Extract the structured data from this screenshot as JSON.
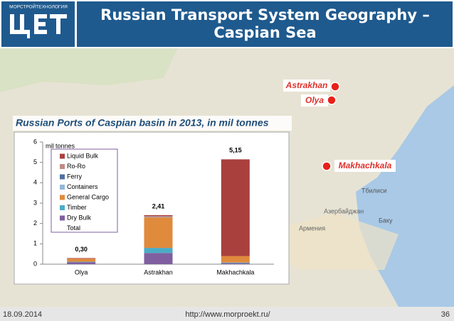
{
  "header": {
    "logo_text": "МОРСТРОЙТЕХНОЛОГИЯ",
    "title": "Russian Transport System Geography – Caspian Sea"
  },
  "map": {
    "markers": [
      "Astrakhan",
      "Olya",
      "Makhachkala"
    ],
    "labels": [
      "Тбилиси",
      "Баку",
      "Азербайджан",
      "Армения"
    ]
  },
  "chart_data": {
    "type": "bar",
    "stacked": true,
    "title": "Russian Ports of Caspian basin in 2013, in mil tonnes",
    "y_label": "mil tonnes",
    "categories": [
      "Olya",
      "Astrakhan",
      "Makhachkala"
    ],
    "ylim": [
      0,
      6
    ],
    "yticks": [
      0,
      1,
      2,
      3,
      4,
      5,
      6
    ],
    "series": [
      {
        "name": "Liquid Bulk",
        "color": "#a9403e",
        "values": [
          0.03,
          0.05,
          4.75
        ]
      },
      {
        "name": "Ro-Ro",
        "color": "#c08a86",
        "values": [
          0,
          0.04,
          0
        ]
      },
      {
        "name": "Ferry",
        "color": "#4f6fa0",
        "values": [
          0,
          0,
          0
        ]
      },
      {
        "name": "Containers",
        "color": "#94b6d8",
        "values": [
          0,
          0.02,
          0
        ]
      },
      {
        "name": "General Cargo",
        "color": "#e08a3c",
        "values": [
          0.15,
          1.5,
          0.32
        ]
      },
      {
        "name": "Timber",
        "color": "#4bacc6",
        "values": [
          0.02,
          0.25,
          0.03
        ]
      },
      {
        "name": "Dry Bulk",
        "color": "#7f5fa0",
        "values": [
          0.1,
          0.55,
          0.05
        ]
      },
      {
        "name": "Total",
        "values": [
          0.3,
          2.41,
          5.15
        ],
        "value_labels": [
          "0,30",
          "2,41",
          "5,15"
        ]
      }
    ]
  },
  "footer": {
    "date": "18.09.2014",
    "url": "http://www.morproekt.ru/",
    "page": "36"
  }
}
